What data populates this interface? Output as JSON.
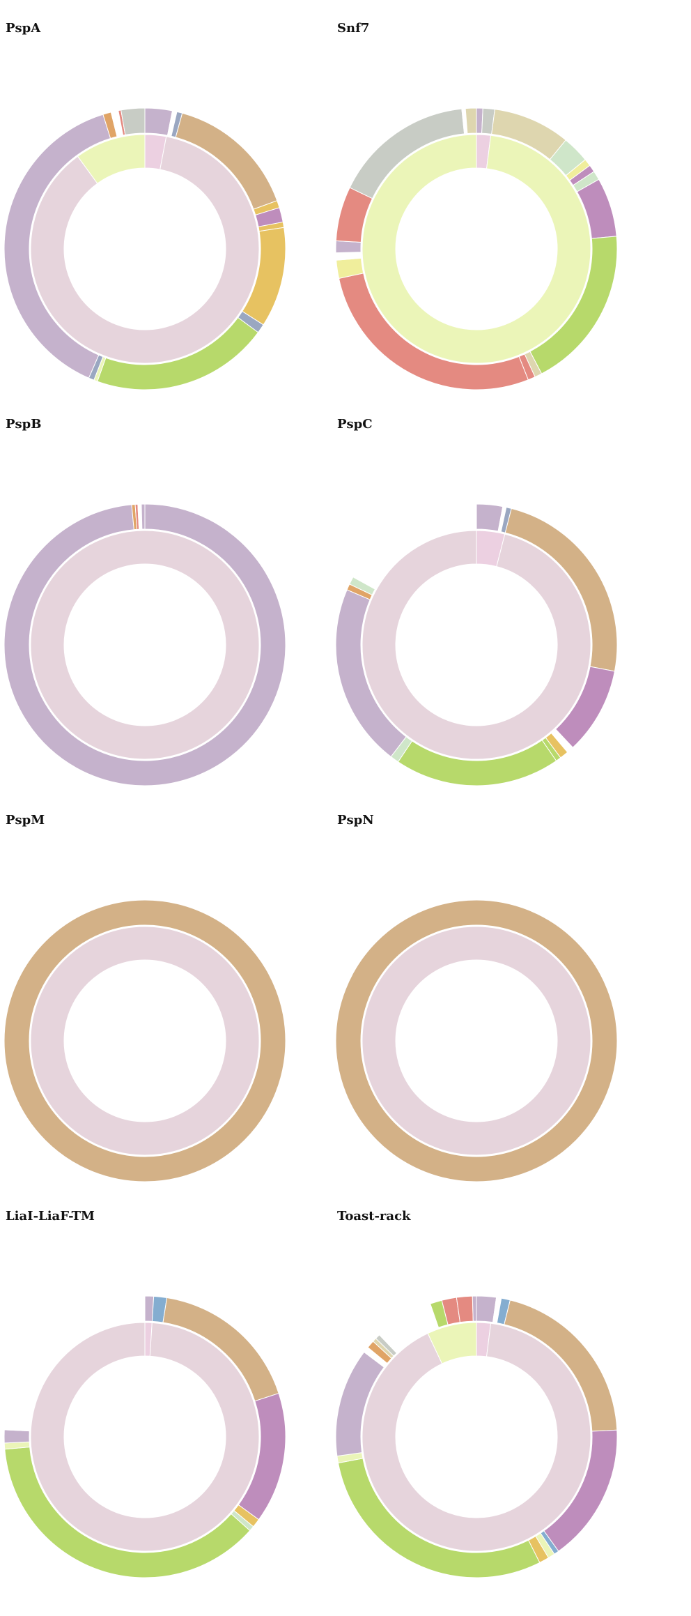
{
  "palette": {
    "center_pink": "#e6d4dc",
    "lilac": "#c5b2cc",
    "tan": "#d3b187",
    "green": "#b7d96b",
    "orange": "#e7c261",
    "purple": "#be8dbc",
    "slate": "#9aa7c1",
    "grey": "#c8ccc5",
    "salmon": "#e48a81",
    "yellow_green": "#ebf5b8",
    "khaki": "#ded6af",
    "mint": "#cfe6c9",
    "pale_yellow": "#f0ee9c",
    "blue": "#84add0",
    "light_pink": "#ecd0e1",
    "dark_orange": "#e0a466",
    "red": "#e86f6f"
  },
  "chart_data": [
    {
      "type": "sunburst",
      "title": "PspA",
      "inner": [
        {
          "value": 3.0,
          "color": "#ecd0e1"
        },
        {
          "value": 87.0,
          "color": "#e6d4dc"
        },
        {
          "value": 10.0,
          "color": "#ebf5b8"
        }
      ],
      "outer": [
        {
          "value": 3.0,
          "color": "#c5b2cc"
        },
        {
          "value": 0.5,
          "color": "#ffffff"
        },
        {
          "value": 0.6,
          "color": "#9aa7c1"
        },
        {
          "value": 14.5,
          "color": "#d3b187"
        },
        {
          "value": 0.8,
          "color": "#e7c261"
        },
        {
          "value": 1.6,
          "color": "#be8dbc"
        },
        {
          "value": 0.6,
          "color": "#e7c261"
        },
        {
          "value": 11.0,
          "color": "#e7c261"
        },
        {
          "value": 1.0,
          "color": "#9aa7c1"
        },
        {
          "value": 19.5,
          "color": "#b7d96b"
        },
        {
          "value": 0.4,
          "color": "#ebf5b8"
        },
        {
          "value": 0.6,
          "color": "#9aa7c1"
        },
        {
          "value": 37.0,
          "color": "#c5b2cc"
        },
        {
          "value": 0.9,
          "color": "#e0a466"
        },
        {
          "value": 0.8,
          "color": "#ffffff"
        },
        {
          "value": 0.3,
          "color": "#e48a81"
        },
        {
          "value": 2.6,
          "color": "#c8ccc5"
        }
      ]
    },
    {
      "type": "sunburst",
      "title": "Snf7",
      "inner": [
        {
          "value": 2.0,
          "color": "#ecd0e1"
        },
        {
          "value": 98.0,
          "color": "#ebf5b8"
        }
      ],
      "outer": [
        {
          "value": 0.7,
          "color": "#c5b2cc"
        },
        {
          "value": 1.3,
          "color": "#c8ccc5"
        },
        {
          "value": 8.5,
          "color": "#ded6af"
        },
        {
          "value": 3.0,
          "color": "#cfe6c9"
        },
        {
          "value": 0.8,
          "color": "#f0ee9c"
        },
        {
          "value": 0.8,
          "color": "#be8dbc"
        },
        {
          "value": 1.0,
          "color": "#cfe6c9"
        },
        {
          "value": 6.5,
          "color": "#be8dbc"
        },
        {
          "value": 18.0,
          "color": "#b7d96b"
        },
        {
          "value": 0.8,
          "color": "#ded6af"
        },
        {
          "value": 0.8,
          "color": "#e48a81"
        },
        {
          "value": 26.5,
          "color": "#e48a81"
        },
        {
          "value": 2.0,
          "color": "#f0ee9c"
        },
        {
          "value": 0.8,
          "color": "#ffffff"
        },
        {
          "value": 1.3,
          "color": "#c5b2cc"
        },
        {
          "value": 6.0,
          "color": "#e48a81"
        },
        {
          "value": 15.5,
          "color": "#c8ccc5"
        },
        {
          "value": 0.4,
          "color": "#ffffff"
        },
        {
          "value": 1.2,
          "color": "#ded6af"
        }
      ]
    },
    {
      "type": "sunburst",
      "title": "PspB",
      "inner": [
        {
          "value": 100.0,
          "color": "#e6d4dc"
        }
      ],
      "outer": [
        {
          "value": 98.5,
          "color": "#c5b2cc"
        },
        {
          "value": 0.4,
          "color": "#e0a466"
        },
        {
          "value": 0.3,
          "color": "#e48a81"
        },
        {
          "value": 0.4,
          "color": "#ffffff"
        },
        {
          "value": 0.4,
          "color": "#c5b2cc"
        }
      ]
    },
    {
      "type": "sunburst",
      "title": "PspC",
      "inner": [
        {
          "value": 4.0,
          "color": "#ecd0e1"
        },
        {
          "value": 96.0,
          "color": "#e6d4dc"
        }
      ],
      "outer": [
        {
          "value": 3.0,
          "color": "#c5b2cc"
        },
        {
          "value": 0.4,
          "color": "#ffffff"
        },
        {
          "value": 0.6,
          "color": "#9aa7c1"
        },
        {
          "value": 24.0,
          "color": "#d3b187"
        },
        {
          "value": 10.0,
          "color": "#be8dbc"
        },
        {
          "value": 0.8,
          "color": "#ffffff"
        },
        {
          "value": 1.0,
          "color": "#e7c261"
        },
        {
          "value": 0.6,
          "color": "#b7d96b"
        },
        {
          "value": 19.0,
          "color": "#b7d96b"
        },
        {
          "value": 1.0,
          "color": "#cfe6c9"
        },
        {
          "value": 21.0,
          "color": "#c5b2cc"
        },
        {
          "value": 0.7,
          "color": "#e0a466"
        },
        {
          "value": 0.9,
          "color": "#cfe6c9"
        },
        {
          "value": 17.0,
          "color": "#ffffff"
        }
      ]
    },
    {
      "type": "sunburst",
      "title": "PspM",
      "inner": [
        {
          "value": 100.0,
          "color": "#e6d4dc"
        }
      ],
      "outer": [
        {
          "value": 100.0,
          "color": "#d3b187"
        }
      ]
    },
    {
      "type": "sunburst",
      "title": "PspN",
      "inner": [
        {
          "value": 100.0,
          "color": "#e6d4dc"
        }
      ],
      "outer": [
        {
          "value": 100.0,
          "color": "#d3b187"
        }
      ]
    },
    {
      "type": "sunburst",
      "title": "LiaI-LiaF-TM",
      "inner": [
        {
          "value": 1.0,
          "color": "#ecd0e1"
        },
        {
          "value": 99.0,
          "color": "#e6d4dc"
        }
      ],
      "outer": [
        {
          "value": 1.0,
          "color": "#c5b2cc"
        },
        {
          "value": 1.5,
          "color": "#84add0"
        },
        {
          "value": 17.5,
          "color": "#d3b187"
        },
        {
          "value": 15.0,
          "color": "#be8dbc"
        },
        {
          "value": 1.0,
          "color": "#e7c261"
        },
        {
          "value": 0.6,
          "color": "#cfe6c9"
        },
        {
          "value": 37.0,
          "color": "#b7d96b"
        },
        {
          "value": 0.7,
          "color": "#ebf5b8"
        },
        {
          "value": 1.5,
          "color": "#c5b2cc"
        },
        {
          "value": 24.2,
          "color": "#ffffff"
        }
      ]
    },
    {
      "type": "sunburst",
      "title": "Toast-rack",
      "inner": [
        {
          "value": 2.0,
          "color": "#ecd0e1"
        },
        {
          "value": 91.0,
          "color": "#e6d4dc"
        },
        {
          "value": 7.0,
          "color": "#ebf5b8"
        }
      ],
      "outer": [
        {
          "value": 2.0,
          "color": "#c5b2cc"
        },
        {
          "value": 0.5,
          "color": "#ffffff"
        },
        {
          "value": 0.9,
          "color": "#84add0"
        },
        {
          "value": 18.0,
          "color": "#d3b187"
        },
        {
          "value": 14.0,
          "color": "#be8dbc"
        },
        {
          "value": 0.5,
          "color": "#84add0"
        },
        {
          "value": 0.7,
          "color": "#ebf5b8"
        },
        {
          "value": 1.0,
          "color": "#e7c261"
        },
        {
          "value": 26.0,
          "color": "#b7d96b"
        },
        {
          "value": 0.7,
          "color": "#ebf5b8"
        },
        {
          "value": 11.0,
          "color": "#c5b2cc"
        },
        {
          "value": 0.6,
          "color": "#ffffff"
        },
        {
          "value": 0.8,
          "color": "#e0a466"
        },
        {
          "value": 0.4,
          "color": "#ded6af"
        },
        {
          "value": 0.5,
          "color": "#c8ccc5"
        },
        {
          "value": 6.0,
          "color": "#ffffff"
        },
        {
          "value": 1.2,
          "color": "#b7d96b"
        },
        {
          "value": 1.5,
          "color": "#e48a81"
        },
        {
          "value": 1.6,
          "color": "#e48a81"
        },
        {
          "value": 0.4,
          "color": "#c5b2cc"
        }
      ]
    }
  ]
}
